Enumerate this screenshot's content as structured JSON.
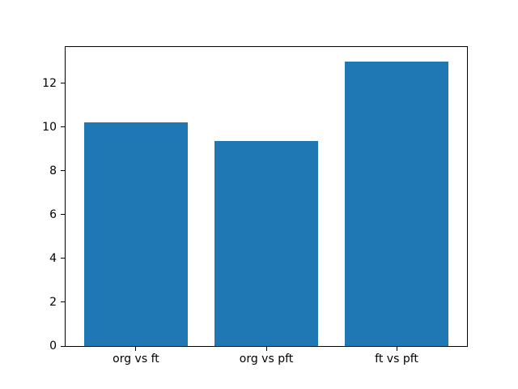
{
  "figure": {
    "background": "#ffffff",
    "bar_color": "#1f77b4",
    "spine_color": "#000000",
    "text_color": "#000000"
  },
  "chart_data": {
    "type": "bar",
    "categories": [
      "org vs ft",
      "org vs pft",
      "ft vs pft"
    ],
    "values": [
      10.2,
      9.35,
      13.0
    ],
    "title": "",
    "xlabel": "",
    "ylabel": "",
    "ylim": [
      0,
      13.65
    ],
    "xlim": [
      -0.54,
      2.54
    ],
    "yticks": [
      0,
      2,
      4,
      6,
      8,
      10,
      12
    ],
    "bar_width_fraction": 0.8,
    "grid": false,
    "legend": null
  }
}
